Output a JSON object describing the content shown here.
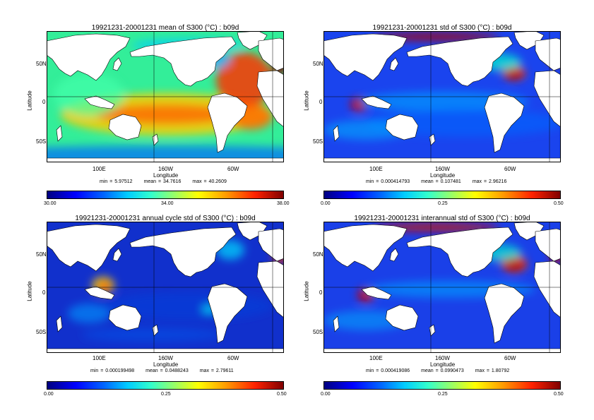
{
  "panels": [
    {
      "title": "19921231-20001231 mean of S300 (°C) : b09d",
      "ylabel": "Latitude",
      "xlabel": "Longitude",
      "yticks": [
        "50N",
        "0",
        "50S"
      ],
      "xticks": [
        "100E",
        "160W",
        "60W"
      ],
      "stats": {
        "min": "min = 5.97512",
        "mean": "mean = 34.7616",
        "max": "max = 40.2609"
      },
      "cbar_ticks": [
        "30.00",
        "34.00",
        "38.00"
      ],
      "field": "mean"
    },
    {
      "title": "19921231-20001231 std of S300 (°C) : b09d",
      "ylabel": "Latitude",
      "xlabel": "Longitude",
      "yticks": [
        "50N",
        "0",
        "50S"
      ],
      "xticks": [
        "100E",
        "160W",
        "60W"
      ],
      "stats": {
        "min": "min = 0.000414793",
        "mean": "mean = 0.107481",
        "max": "max = 2.96216"
      },
      "cbar_ticks": [
        "0.00",
        "0.25",
        "0.50"
      ],
      "field": "std"
    },
    {
      "title": "19921231-20001231 annual cycle std of S300 (°C) : b09d",
      "ylabel": "Latitude",
      "xlabel": "Longitude",
      "yticks": [
        "50N",
        "0",
        "50S"
      ],
      "xticks": [
        "100E",
        "160W",
        "60W"
      ],
      "stats": {
        "min": "min = 0.000199498",
        "mean": "mean = 0.0488243",
        "max": "max = 2.79611"
      },
      "cbar_ticks": [
        "0.00",
        "0.25",
        "0.50"
      ],
      "field": "annual"
    },
    {
      "title": "19921231-20001231 interannual std of S300 (°C) : b09d",
      "ylabel": "Latitude",
      "xlabel": "Longitude",
      "yticks": [
        "50N",
        "0",
        "50S"
      ],
      "xticks": [
        "100E",
        "160W",
        "60W"
      ],
      "stats": {
        "min": "min = 0.000419086",
        "mean": "mean = 0.0990473",
        "max": "max = 1.80792"
      },
      "cbar_ticks": [
        "0.00",
        "0.25",
        "0.50"
      ],
      "field": "interannual"
    }
  ],
  "colors": {
    "land": "#ffffff",
    "coast": "#000000",
    "grid": "#000000"
  }
}
